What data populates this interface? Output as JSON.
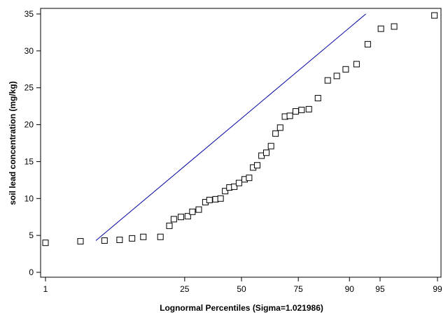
{
  "chart_data": {
    "type": "scatter",
    "title": "",
    "xlabel": "Lognormal Percentiles (Sigma=1.021986)",
    "ylabel": "soil lead concentration (mg/kg)",
    "ylim": [
      0,
      35
    ],
    "yticks": [
      0,
      5,
      10,
      15,
      20,
      25,
      30,
      35
    ],
    "xscale": "lognormal-percentile",
    "xticks": [
      1,
      25,
      50,
      75,
      90,
      95,
      99
    ],
    "grid": false,
    "legend": "none",
    "marker": "hollow-square",
    "colors": {
      "points": "#000000",
      "fit_line": "#0000a0",
      "axis": "#000000"
    },
    "points": [
      {
        "x": 1.0,
        "y": 4.0
      },
      {
        "x": 2.8,
        "y": 4.2
      },
      {
        "x": 5.2,
        "y": 4.3
      },
      {
        "x": 7.4,
        "y": 4.4
      },
      {
        "x": 9.7,
        "y": 4.6
      },
      {
        "x": 12.2,
        "y": 4.8
      },
      {
        "x": 16.8,
        "y": 4.8
      },
      {
        "x": 19.6,
        "y": 6.3
      },
      {
        "x": 21.1,
        "y": 7.2
      },
      {
        "x": 23.6,
        "y": 7.5
      },
      {
        "x": 26.2,
        "y": 7.6
      },
      {
        "x": 28.0,
        "y": 8.2
      },
      {
        "x": 30.6,
        "y": 8.5
      },
      {
        "x": 33.4,
        "y": 9.5
      },
      {
        "x": 35.2,
        "y": 9.8
      },
      {
        "x": 37.9,
        "y": 9.9
      },
      {
        "x": 40.2,
        "y": 10.0
      },
      {
        "x": 42.3,
        "y": 11.0
      },
      {
        "x": 44.3,
        "y": 11.5
      },
      {
        "x": 46.6,
        "y": 11.6
      },
      {
        "x": 48.8,
        "y": 12.1
      },
      {
        "x": 51.5,
        "y": 12.6
      },
      {
        "x": 53.6,
        "y": 12.8
      },
      {
        "x": 55.5,
        "y": 14.2
      },
      {
        "x": 57.4,
        "y": 14.5
      },
      {
        "x": 59.4,
        "y": 15.8
      },
      {
        "x": 61.6,
        "y": 16.2
      },
      {
        "x": 63.7,
        "y": 17.1
      },
      {
        "x": 65.7,
        "y": 18.8
      },
      {
        "x": 67.7,
        "y": 19.6
      },
      {
        "x": 69.7,
        "y": 21.1
      },
      {
        "x": 71.7,
        "y": 21.2
      },
      {
        "x": 74.0,
        "y": 21.8
      },
      {
        "x": 76.2,
        "y": 22.0
      },
      {
        "x": 78.8,
        "y": 22.1
      },
      {
        "x": 81.8,
        "y": 23.6
      },
      {
        "x": 84.7,
        "y": 26.0
      },
      {
        "x": 87.1,
        "y": 26.6
      },
      {
        "x": 89.2,
        "y": 27.5
      },
      {
        "x": 91.4,
        "y": 28.2
      },
      {
        "x": 93.3,
        "y": 30.9
      },
      {
        "x": 95.1,
        "y": 33.0
      },
      {
        "x": 96.5,
        "y": 33.3
      },
      {
        "x": 98.9,
        "y": 34.8
      }
    ],
    "fit_line": [
      {
        "x": 4.2,
        "y": 4.3
      },
      {
        "x": 93.0,
        "y": 35.0
      }
    ]
  }
}
